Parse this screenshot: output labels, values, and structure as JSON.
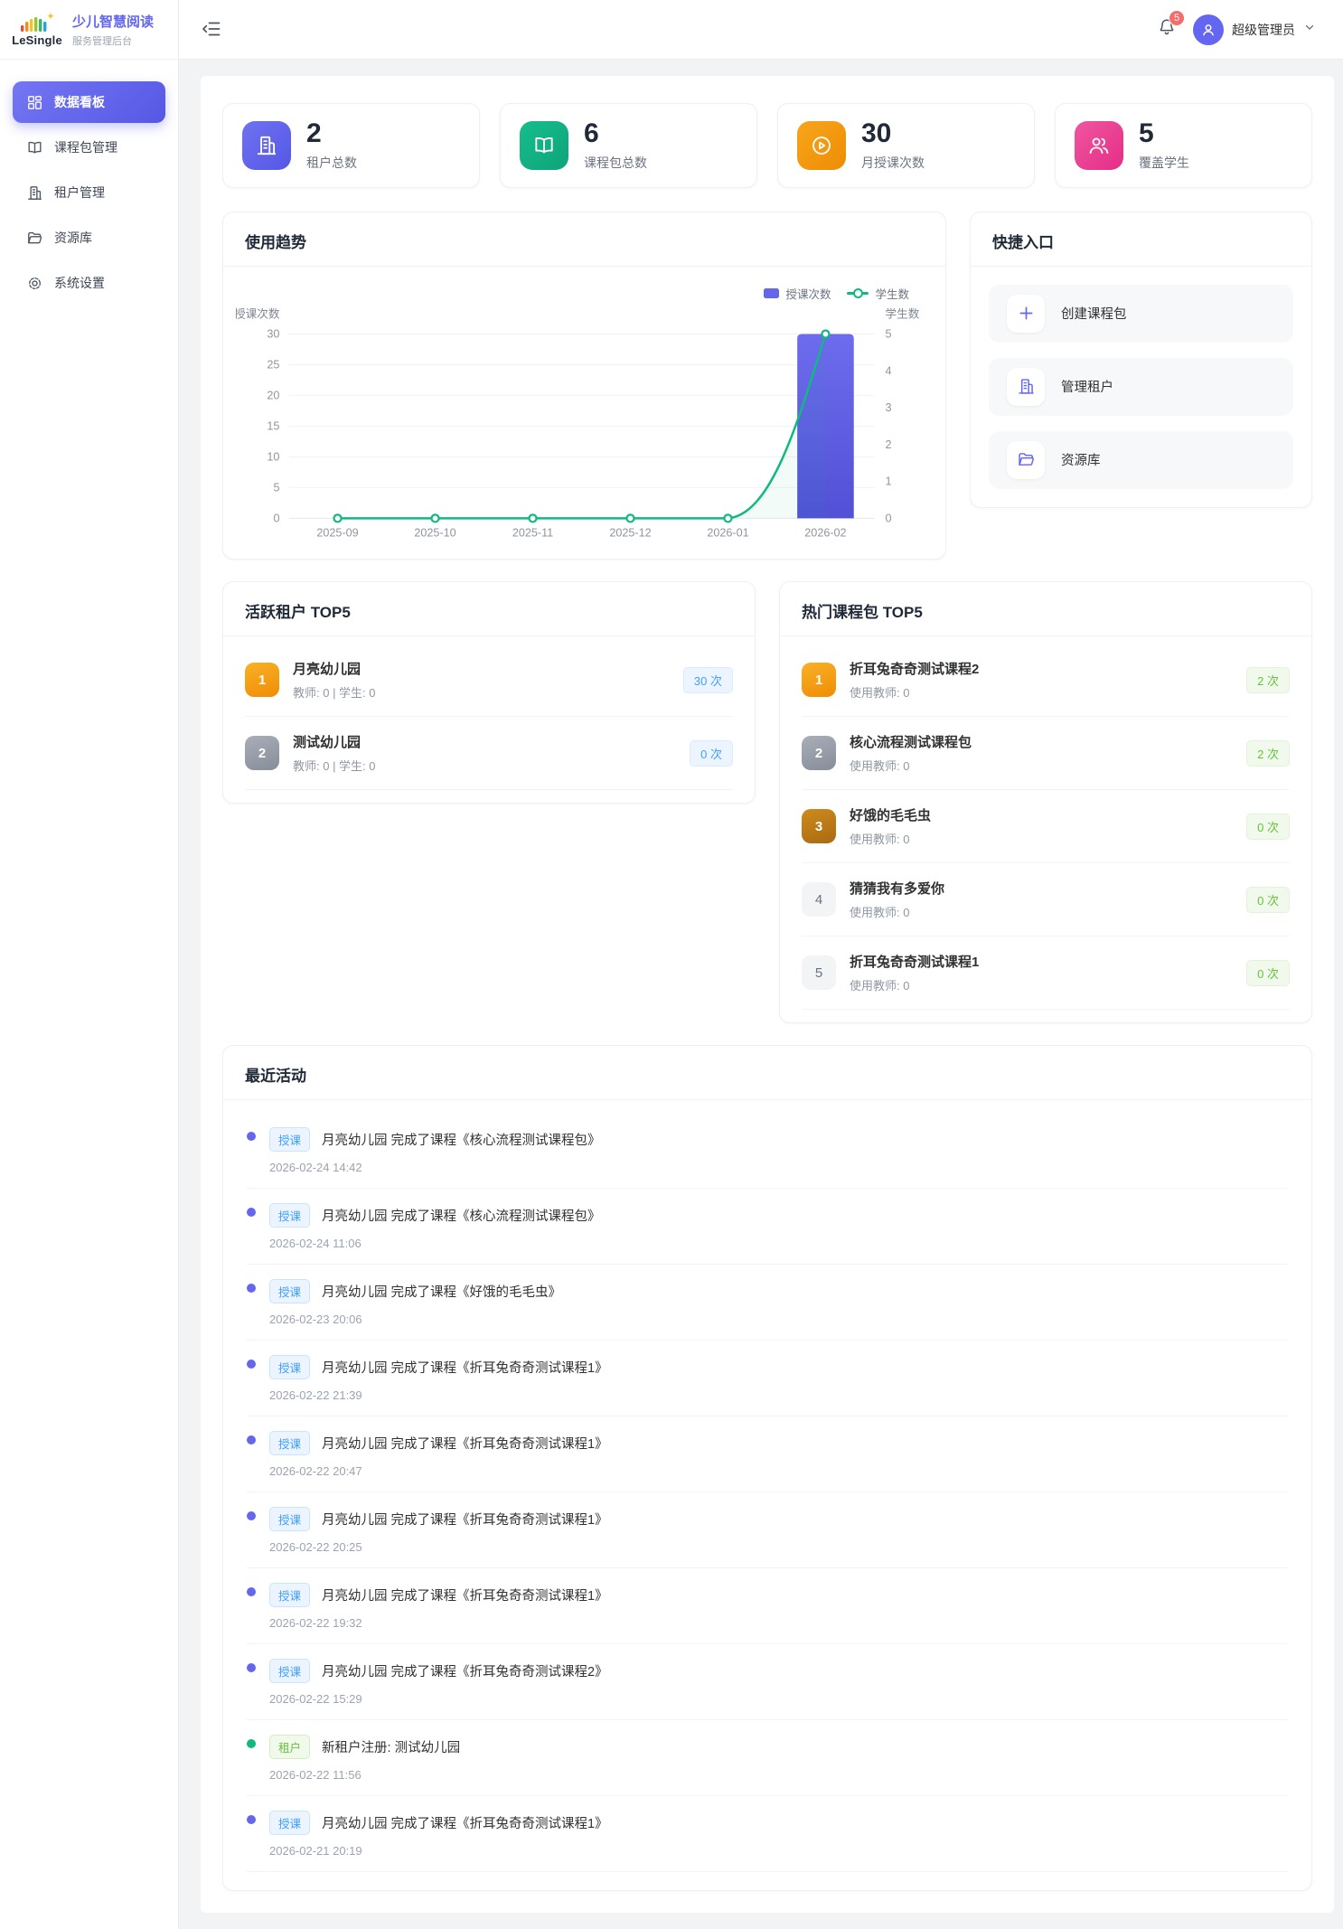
{
  "brand": {
    "logo_text": "LeSingle",
    "title": "少儿智慧阅读",
    "subtitle": "服务管理后台"
  },
  "topbar": {
    "notification_count": "5",
    "user_name": "超级管理员"
  },
  "sidebar": {
    "items": [
      {
        "label": "数据看板",
        "icon": "dashboard",
        "state": "active"
      },
      {
        "label": "课程包管理",
        "icon": "book"
      },
      {
        "label": "租户管理",
        "icon": "building"
      },
      {
        "label": "资源库",
        "icon": "folder"
      },
      {
        "label": "系统设置",
        "icon": "gear"
      }
    ]
  },
  "stats": {
    "items": [
      {
        "value": "2",
        "label": "租户总数",
        "icon": "building",
        "style": "ic-purple"
      },
      {
        "value": "6",
        "label": "课程包总数",
        "icon": "book",
        "style": "ic-green"
      },
      {
        "value": "30",
        "label": "月授课次数",
        "icon": "play",
        "style": "ic-orange"
      },
      {
        "value": "5",
        "label": "覆盖学生",
        "icon": "users",
        "style": "ic-pink"
      }
    ]
  },
  "trend": {
    "title": "使用趋势"
  },
  "chart_data": {
    "type": "combo",
    "categories": [
      "2025-09",
      "2025-10",
      "2025-11",
      "2025-12",
      "2026-01",
      "2026-02"
    ],
    "series": [
      {
        "name": "授课次数",
        "type": "bar",
        "axis": "left",
        "values": [
          0,
          0,
          0,
          0,
          0,
          30
        ],
        "color": "#5d5ce0"
      },
      {
        "name": "学生数",
        "type": "line",
        "axis": "right",
        "values": [
          0,
          0,
          0,
          0,
          0,
          5
        ],
        "color": "#10b981"
      }
    ],
    "left_axis": {
      "label": "授课次数",
      "min": 0,
      "max": 30,
      "ticks": [
        0,
        5,
        10,
        15,
        20,
        25,
        30
      ]
    },
    "right_axis": {
      "label": "学生数",
      "min": 0,
      "max": 5,
      "ticks": [
        0,
        1,
        2,
        3,
        4,
        5
      ]
    },
    "legend_position": "top-right",
    "grid": true
  },
  "quick": {
    "title": "快捷入口",
    "items": [
      {
        "label": "创建课程包",
        "icon": "plus"
      },
      {
        "label": "管理租户",
        "icon": "building"
      },
      {
        "label": "资源库",
        "icon": "folder"
      }
    ]
  },
  "active_tenants": {
    "title": "活跃租户 TOP5",
    "items": [
      {
        "rank": "1",
        "name": "月亮幼儿园",
        "meta": "教师: 0 | 学生: 0",
        "count": "30 次",
        "rs": "r1"
      },
      {
        "rank": "2",
        "name": "测试幼儿园",
        "meta": "教师: 0 | 学生: 0",
        "count": "0 次",
        "rs": "r2"
      }
    ]
  },
  "hot_courses": {
    "title": "热门课程包 TOP5",
    "items": [
      {
        "rank": "1",
        "name": "折耳兔奇奇测试课程2",
        "meta": "使用教师: 0",
        "count": "2 次",
        "rs": "r1"
      },
      {
        "rank": "2",
        "name": "核心流程测试课程包",
        "meta": "使用教师: 0",
        "count": "2 次",
        "rs": "r2"
      },
      {
        "rank": "3",
        "name": "好饿的毛毛虫",
        "meta": "使用教师: 0",
        "count": "0 次",
        "rs": "r3"
      },
      {
        "rank": "4",
        "name": "猜猜我有多爱你",
        "meta": "使用教师: 0",
        "count": "0 次",
        "rs": "rm"
      },
      {
        "rank": "5",
        "name": "折耳兔奇奇测试课程1",
        "meta": "使用教师: 0",
        "count": "0 次",
        "rs": "rm"
      }
    ]
  },
  "activities": {
    "title": "最近活动",
    "items": [
      {
        "kind": "teach",
        "tag": "授课",
        "text": "月亮幼儿园 完成了课程《核心流程测试课程包》",
        "time": "2026-02-24 14:42"
      },
      {
        "kind": "teach",
        "tag": "授课",
        "text": "月亮幼儿园 完成了课程《核心流程测试课程包》",
        "time": "2026-02-24 11:06"
      },
      {
        "kind": "teach",
        "tag": "授课",
        "text": "月亮幼儿园 完成了课程《好饿的毛毛虫》",
        "time": "2026-02-23 20:06"
      },
      {
        "kind": "teach",
        "tag": "授课",
        "text": "月亮幼儿园 完成了课程《折耳兔奇奇测试课程1》",
        "time": "2026-02-22 21:39"
      },
      {
        "kind": "teach",
        "tag": "授课",
        "text": "月亮幼儿园 完成了课程《折耳兔奇奇测试课程1》",
        "time": "2026-02-22 20:47"
      },
      {
        "kind": "teach",
        "tag": "授课",
        "text": "月亮幼儿园 完成了课程《折耳兔奇奇测试课程1》",
        "time": "2026-02-22 20:25"
      },
      {
        "kind": "teach",
        "tag": "授课",
        "text": "月亮幼儿园 完成了课程《折耳兔奇奇测试课程1》",
        "time": "2026-02-22 19:32"
      },
      {
        "kind": "teach",
        "tag": "授课",
        "text": "月亮幼儿园 完成了课程《折耳兔奇奇测试课程2》",
        "time": "2026-02-22 15:29"
      },
      {
        "kind": "tenant",
        "tag": "租户",
        "text": "新租户注册: 测试幼儿园",
        "time": "2026-02-22 11:56"
      },
      {
        "kind": "teach",
        "tag": "授课",
        "text": "月亮幼儿园 完成了课程《折耳兔奇奇测试课程1》",
        "time": "2026-02-21 20:19"
      }
    ]
  }
}
